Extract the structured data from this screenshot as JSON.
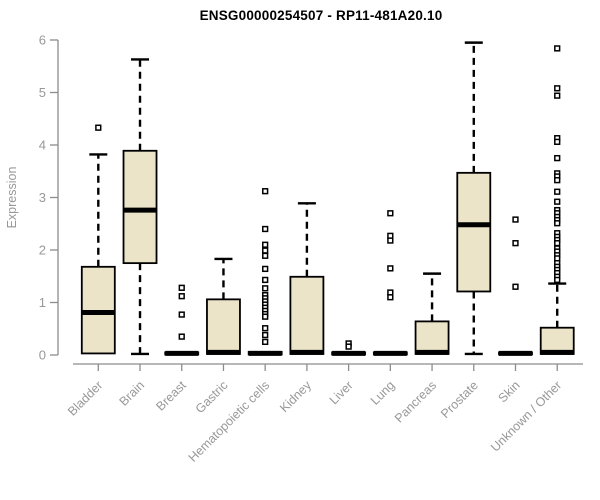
{
  "title": "ENSG00000254507 - RP11-481A20.10",
  "chart_data": {
    "type": "boxplot",
    "title": "ENSG00000254507 - RP11-481A20.10",
    "xlabel": "",
    "ylabel": "Expression",
    "ylim": [
      0,
      6
    ],
    "yticks": [
      0,
      1,
      2,
      3,
      4,
      5,
      6
    ],
    "grid": false,
    "legend": "none",
    "colors": {
      "box_fill": "#ece4c8",
      "box_stroke": "#000000",
      "median": "#000000",
      "whisker": "#000000",
      "outlier_stroke": "#000000",
      "outlier_fill": "#ffffff",
      "axis": "#8c8c8c",
      "tick_label": "#989898",
      "title": "#000000"
    },
    "categories": [
      "Bladder",
      "Brain",
      "Breast",
      "Gastric",
      "Hematopoietic cells",
      "Kidney",
      "Liver",
      "Lung",
      "Pancreas",
      "Prostate",
      "Skin",
      "Unknown / Other"
    ],
    "series": [
      {
        "name": "Bladder",
        "low": 0.03,
        "q1": 0.03,
        "median": 0.81,
        "q3": 1.68,
        "high": 3.82,
        "outliers": [
          4.33
        ]
      },
      {
        "name": "Brain",
        "low": 0.02,
        "q1": 1.75,
        "median": 2.76,
        "q3": 3.89,
        "high": 5.63,
        "outliers": []
      },
      {
        "name": "Breast",
        "low": 0.0,
        "q1": 0.01,
        "median": 0.03,
        "q3": 0.05,
        "high": 0.05,
        "outliers": [
          1.28,
          1.12,
          0.77,
          0.35
        ]
      },
      {
        "name": "Gastric",
        "low": 0.02,
        "q1": 0.02,
        "median": 0.05,
        "q3": 1.06,
        "high": 1.83,
        "outliers": []
      },
      {
        "name": "Hematopoietic cells",
        "low": 0.0,
        "q1": 0.01,
        "median": 0.03,
        "q3": 0.06,
        "high": 0.06,
        "outliers": [
          3.12,
          2.4,
          2.1,
          1.99,
          1.89,
          1.64,
          1.43,
          1.27,
          1.14,
          1.08,
          1.02,
          0.96,
          0.9,
          0.84,
          0.78,
          0.73,
          0.51,
          0.38,
          0.25
        ]
      },
      {
        "name": "Kidney",
        "low": 0.02,
        "q1": 0.02,
        "median": 0.05,
        "q3": 1.49,
        "high": 2.89,
        "outliers": []
      },
      {
        "name": "Liver",
        "low": 0.0,
        "q1": 0.01,
        "median": 0.03,
        "q3": 0.05,
        "high": 0.05,
        "outliers": [
          0.22,
          0.16
        ]
      },
      {
        "name": "Lung",
        "low": 0.0,
        "q1": 0.01,
        "median": 0.03,
        "q3": 0.05,
        "high": 0.05,
        "outliers": [
          2.7,
          2.27,
          2.18,
          1.65,
          1.19,
          1.1
        ]
      },
      {
        "name": "Pancreas",
        "low": 0.02,
        "q1": 0.02,
        "median": 0.05,
        "q3": 0.64,
        "high": 1.55,
        "outliers": []
      },
      {
        "name": "Prostate",
        "low": 0.02,
        "q1": 1.21,
        "median": 2.48,
        "q3": 3.47,
        "high": 5.95,
        "outliers": []
      },
      {
        "name": "Skin",
        "low": 0.0,
        "q1": 0.01,
        "median": 0.03,
        "q3": 0.05,
        "high": 0.05,
        "outliers": [
          2.58,
          2.13,
          1.3
        ]
      },
      {
        "name": "Unknown / Other",
        "low": 0.02,
        "q1": 0.02,
        "median": 0.05,
        "q3": 0.52,
        "high": 1.36,
        "outliers": [
          5.84,
          5.08,
          4.94,
          4.13,
          4.06,
          3.75,
          3.46,
          3.4,
          3.33,
          3.11,
          2.92,
          2.76,
          2.7,
          2.63,
          2.57,
          2.51,
          2.32,
          2.25,
          2.19,
          2.13,
          2.03,
          1.97,
          1.9,
          1.84,
          1.75,
          1.68,
          1.62,
          1.56,
          1.49,
          1.43
        ]
      }
    ]
  }
}
